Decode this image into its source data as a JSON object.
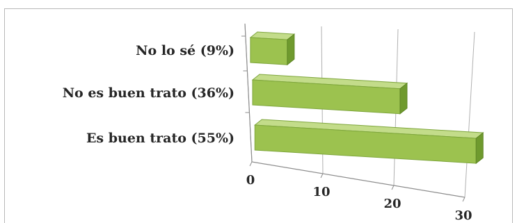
{
  "chart_data": {
    "type": "bar",
    "orientation": "horizontal",
    "three_d": true,
    "categories": [
      "No lo sé (9%)",
      "No es buen trato (36%)",
      "Es buen trato (55%)"
    ],
    "values": [
      5,
      20,
      30
    ],
    "xlim": [
      0,
      30
    ],
    "xticks": [
      "0",
      "10",
      "20",
      "30"
    ],
    "grid": true,
    "legend": "none",
    "bar_color": "#9cc24f",
    "bar_top_color": "#c3dc8a",
    "bar_end_color": "#6f9a2e"
  }
}
